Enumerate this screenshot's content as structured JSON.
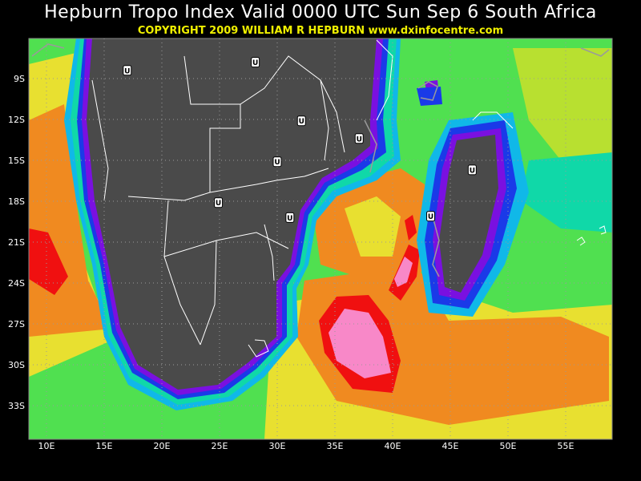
{
  "header": {
    "title": "Hepburn Tropo Index Valid 0000 UTC Sun Sep 6 South Africa",
    "copyright": "COPYRIGHT 2009   WILLIAM R HEPBURN   www.dxinfocentre.com"
  },
  "map": {
    "lat_labels": [
      "9S",
      "12S",
      "15S",
      "18S",
      "21S",
      "24S",
      "27S",
      "30S",
      "33S"
    ],
    "lon_labels": [
      "10E",
      "15E",
      "20E",
      "25E",
      "30E",
      "35E",
      "40E",
      "45E",
      "50E",
      "55E"
    ],
    "colors": {
      "land": "#4a4a4a",
      "violet": "#7a10e0",
      "blue": "#1a3ae8",
      "cyan": "#10b8e8",
      "teal": "#10d8a8",
      "green": "#50e050",
      "yellowgreen": "#b8e030",
      "yellow": "#e8e030",
      "orange": "#f08a20",
      "red": "#f01010",
      "pink": "#f888c8",
      "grid": "#9a9a9a",
      "border": "#ffffff"
    },
    "markers": [
      {
        "label": "U",
        "lon": 17,
        "lat": -8.4
      },
      {
        "label": "U",
        "lon": 28.1,
        "lat": -7.8
      },
      {
        "label": "U",
        "lon": 32.1,
        "lat": -12.1
      },
      {
        "label": "U",
        "lon": 37.1,
        "lat": -13.4
      },
      {
        "label": "U",
        "lon": 30,
        "lat": -15.1
      },
      {
        "label": "U",
        "lon": 24.9,
        "lat": -18.1
      },
      {
        "label": "U",
        "lon": 31.1,
        "lat": -19.2
      },
      {
        "label": "U",
        "lon": 46.9,
        "lat": -15.7
      },
      {
        "label": "U",
        "lon": 43.3,
        "lat": -19.1
      }
    ]
  }
}
